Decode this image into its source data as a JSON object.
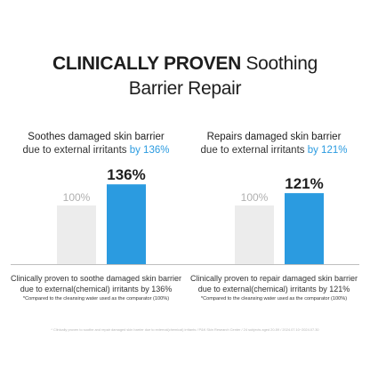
{
  "headline": {
    "line1_bold": "CLINICALLY PROVEN",
    "line1_rest": " Soothing",
    "line2": "Barrier Repair"
  },
  "colors": {
    "accent": "#2b9be0",
    "comparator_bar": "#ececec",
    "text": "#222222"
  },
  "panels": [
    {
      "subtitle_accent": "Soothes damaged skin barrier",
      "subtitle_dark": "due to external irritants",
      "subtitle_value": " by 136%",
      "caption": "Clinically proven to soothe damaged skin barrier due to external(chemical) irritants by 136%",
      "note": "*Compared to the cleansing water used as the comparator (100%)"
    },
    {
      "subtitle_accent": "Repairs damaged skin barrier",
      "subtitle_dark": "due to external irritants",
      "subtitle_value": " by 121%",
      "caption": "Clinically proven to repair damaged skin barrier due to external(chemical) irritants by 121%",
      "note": "*Compared to the cleansing water used as the comparator (100%)"
    }
  ],
  "chart_data": [
    {
      "type": "bar",
      "categories": [
        "",
        ""
      ],
      "values": [
        100,
        136
      ],
      "value_labels": [
        "100%",
        "136%"
      ],
      "ylim": [
        0,
        140
      ],
      "grid": false
    },
    {
      "type": "bar",
      "categories": [
        "",
        ""
      ],
      "values": [
        100,
        121
      ],
      "value_labels": [
        "100%",
        "121%"
      ],
      "ylim": [
        0,
        140
      ],
      "grid": false
    }
  ],
  "footnote": "* Clinically proven to soothe and repair damaged skin barrier due to external(chemical) irritants / P&K Skin Research Center / 24 subjects aged 20-59 / 2024.07.10~2024.07.30"
}
